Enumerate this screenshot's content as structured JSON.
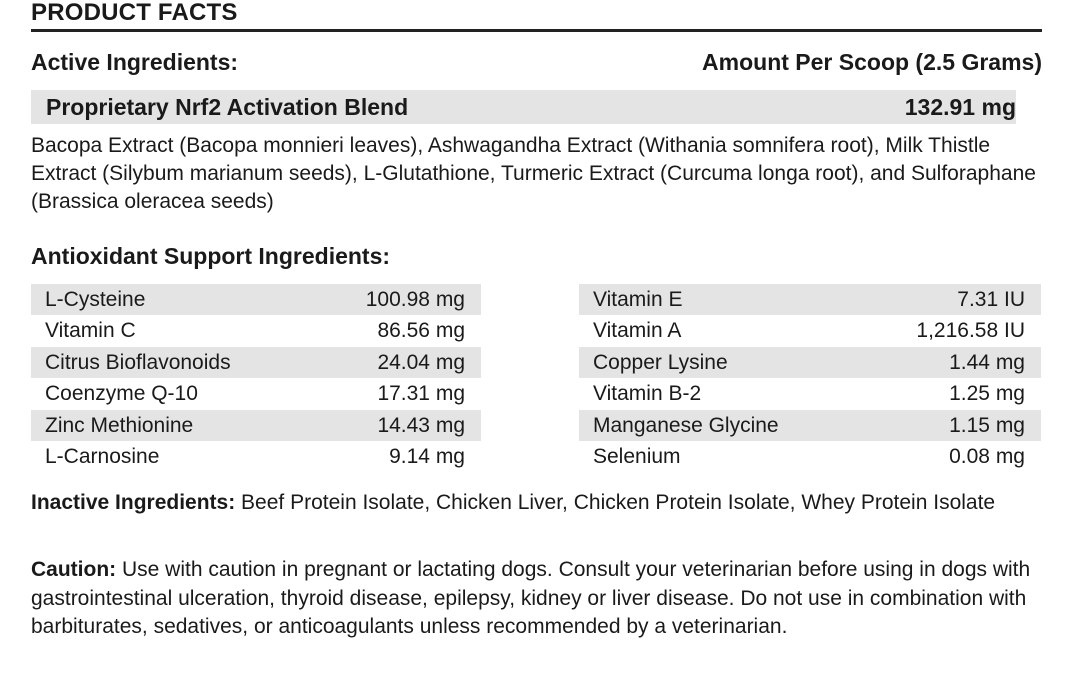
{
  "title": "PRODUCT FACTS",
  "active_header": "Active Ingredients:",
  "amount_header": "Amount Per Scoop (2.5 Grams)",
  "blend": {
    "name": "Proprietary Nrf2 Activation Blend",
    "amount": "132.91 mg",
    "description": "Bacopa Extract (Bacopa monnieri leaves), Ashwagandha Extract (Withania somnifera root), Milk Thistle Extract (Silybum marianum seeds), L-Glutathione, Turmeric Extract (Curcuma longa root), and Sulforaphane (Brassica oleracea seeds)"
  },
  "antioxidant_header": "Antioxidant Support Ingredients:",
  "antioxidant_left": [
    {
      "name": "L-Cysteine",
      "amount": "100.98 mg"
    },
    {
      "name": "Vitamin C",
      "amount": "86.56 mg"
    },
    {
      "name": "Citrus Bioflavonoids",
      "amount": "24.04 mg"
    },
    {
      "name": "Coenzyme Q-10",
      "amount": "17.31 mg"
    },
    {
      "name": "Zinc Methionine",
      "amount": "14.43 mg"
    },
    {
      "name": "L-Carnosine",
      "amount": "9.14 mg"
    }
  ],
  "antioxidant_right": [
    {
      "name": "Vitamin E",
      "amount": "7.31 IU"
    },
    {
      "name": "Vitamin A",
      "amount": "1,216.58 IU"
    },
    {
      "name": "Copper Lysine",
      "amount": "1.44 mg"
    },
    {
      "name": "Vitamin B-2",
      "amount": "1.25 mg"
    },
    {
      "name": "Manganese Glycine",
      "amount": "1.15 mg"
    },
    {
      "name": "Selenium",
      "amount": "0.08 mg"
    }
  ],
  "inactive": {
    "label": "Inactive Ingredients:",
    "text": " Beef Protein Isolate, Chicken Liver, Chicken Protein Isolate, Whey Protein Isolate"
  },
  "caution": {
    "label": "Caution:",
    "text": " Use with caution in pregnant or lactating dogs. Consult your veterinarian before using in dogs with gastrointestinal ulceration, thyroid disease, epilepsy, kidney or liver disease. Do not use in combination with barbiturates, sedatives, or anticoagulants unless recommended by a veterinarian."
  }
}
